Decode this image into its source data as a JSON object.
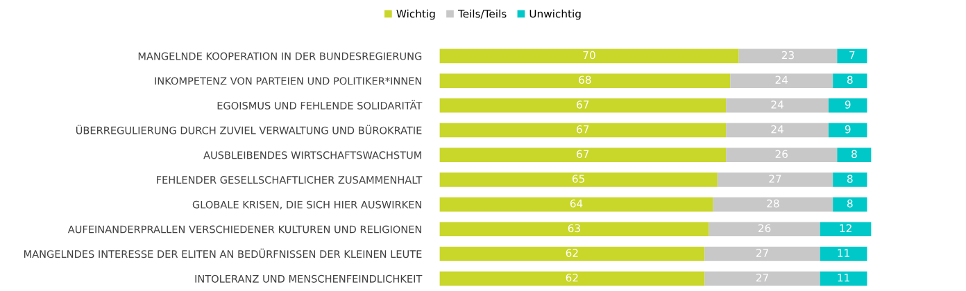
{
  "chart_data": {
    "type": "bar",
    "orientation": "horizontal",
    "stacked": true,
    "data_labels": true,
    "tick_labels": "y",
    "grid": false,
    "legend": "top",
    "categories": [
      "MANGELNDE KOOPERATION IN DER BUNDESREGIERUNG",
      "INKOMPETENZ VON PARTEIEN UND POLITIKER*INNEN",
      "EGOISMUS UND FEHLENDE SOLIDARITÄT",
      "ÜBERREGULIERUNG DURCH ZUVIEL VERWALTUNG UND BÜROKRATIE",
      "AUSBLEIBENDES WIRTSCHAFTSWACHSTUM",
      "FEHLENDER GESELLSCHAFTLICHER ZUSAMMENHALT",
      "GLOBALE KRISEN, DIE SICH HIER AUSWIRKEN",
      "AUFEINANDERPRALLEN VERSCHIEDENER KULTUREN UND RELIGIONEN",
      "MANGELNDES INTERESSE DER ELITEN AN BEDÜRFNISSEN DER KLEINEN LEUTE",
      "INTOLERANZ UND MENSCHENFEINDLICHKEIT"
    ],
    "series": [
      {
        "name": "Wichtig",
        "color": "#c9d62a",
        "values": [
          70,
          68,
          67,
          67,
          67,
          65,
          64,
          63,
          62,
          62
        ]
      },
      {
        "name": "Teils/Teils",
        "color": "#c8c8c8",
        "values": [
          23,
          24,
          24,
          24,
          26,
          27,
          28,
          26,
          27,
          27
        ]
      },
      {
        "name": "Unwichtig",
        "color": "#00c8c8",
        "values": [
          7,
          8,
          9,
          9,
          8,
          8,
          8,
          12,
          11,
          11
        ]
      }
    ]
  }
}
